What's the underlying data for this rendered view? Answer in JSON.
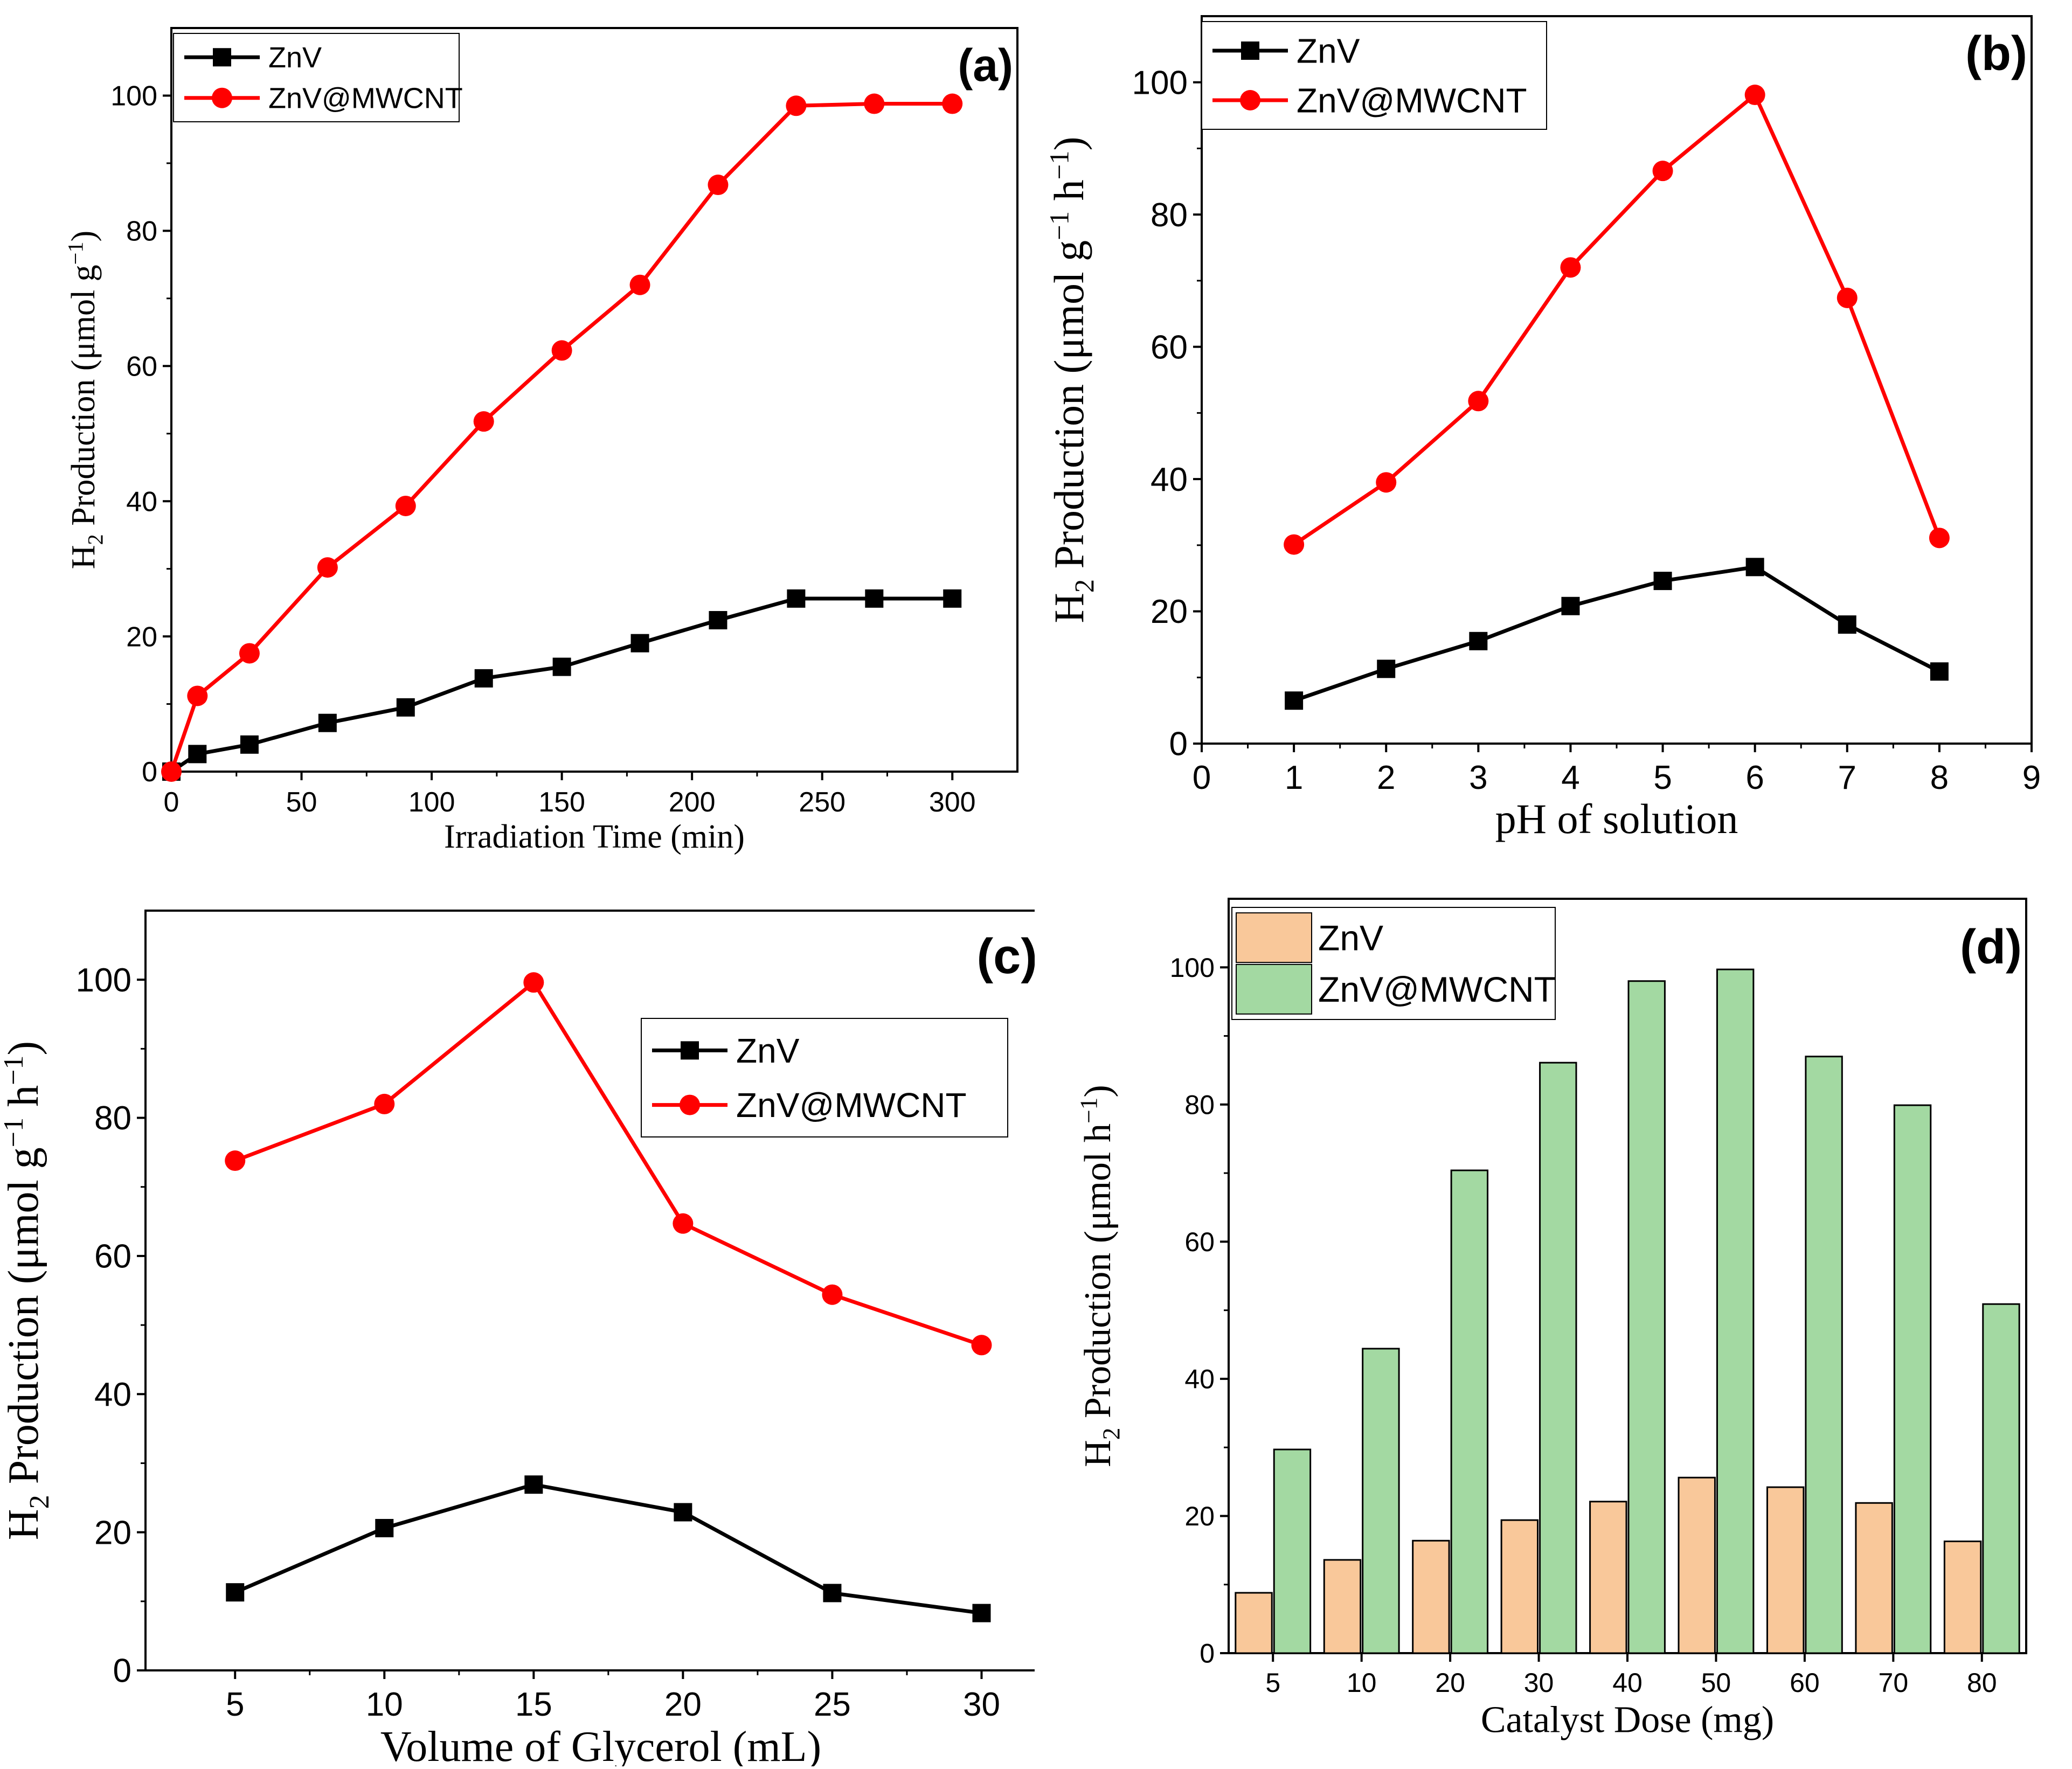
{
  "figure": {
    "colors": {
      "zinc": "#000000",
      "mwcnt": "#ff0000",
      "bar_zinc": "#f9c89a",
      "bar_mwcnt": "#a3d9a2",
      "axis": "#000000"
    }
  },
  "chart_data": [
    {
      "id": "a",
      "type": "line",
      "panel_label": "(a)",
      "xlabel": "Irradiation Time (min)",
      "ylabel": {
        "prefix": "H",
        "sub": "2",
        "main": " Production (μmol g",
        "sup": "−1",
        "suffix": ")"
      },
      "xlim": [
        0,
        325
      ],
      "ylim": [
        0,
        110
      ],
      "xticks": [
        0,
        50,
        100,
        150,
        200,
        250,
        300
      ],
      "yticks": [
        0,
        20,
        40,
        60,
        80,
        100
      ],
      "legend": "top-left",
      "series": [
        {
          "name": "ZnV",
          "color": "#000000",
          "marker": "square",
          "x": [
            0,
            10,
            30,
            60,
            90,
            120,
            150,
            180,
            210,
            240,
            270,
            300
          ],
          "y": [
            0,
            2.6,
            4.0,
            7.2,
            9.5,
            13.8,
            15.5,
            19.0,
            22.4,
            25.6,
            25.6,
            25.6
          ]
        },
        {
          "name": "ZnV@MWCNT",
          "color": "#ff0000",
          "marker": "circle",
          "x": [
            0,
            10,
            30,
            60,
            90,
            120,
            150,
            180,
            210,
            240,
            270,
            300
          ],
          "y": [
            0,
            11.2,
            17.5,
            30.2,
            39.3,
            51.8,
            62.3,
            72.0,
            86.8,
            98.5,
            98.8,
            98.8
          ]
        }
      ]
    },
    {
      "id": "b",
      "type": "line",
      "panel_label": "(b)",
      "xlabel": "pH of solution",
      "ylabel": {
        "prefix": "H",
        "sub": "2",
        "main": " Production (μmol g",
        "sup": "−1",
        "mid": " h",
        "sup2": "−1",
        "suffix": ")"
      },
      "xlim": [
        0,
        9
      ],
      "ylim": [
        0,
        110
      ],
      "xticks": [
        0,
        1,
        2,
        3,
        4,
        5,
        6,
        7,
        8,
        9
      ],
      "yticks": [
        0,
        20,
        40,
        60,
        80,
        100
      ],
      "legend": "top-left",
      "series": [
        {
          "name": "ZnV",
          "color": "#000000",
          "marker": "square",
          "x": [
            1,
            2,
            3,
            4,
            5,
            6,
            7,
            8
          ],
          "y": [
            6.5,
            11.3,
            15.5,
            20.8,
            24.6,
            26.7,
            18.0,
            10.9
          ]
        },
        {
          "name": "ZnV@MWCNT",
          "color": "#ff0000",
          "marker": "circle",
          "x": [
            1,
            2,
            3,
            4,
            5,
            6,
            7,
            8
          ],
          "y": [
            30.1,
            39.5,
            51.8,
            72.0,
            86.6,
            98.1,
            67.4,
            31.1
          ]
        }
      ]
    },
    {
      "id": "c",
      "type": "line",
      "panel_label": "(c)",
      "xlabel": "Volume of Glycerol (mL)",
      "ylabel": {
        "prefix": "H",
        "sub": "2",
        "main": " Production (μmol g",
        "sup": "−1",
        "mid": " h",
        "sup2": "−1",
        "suffix": ")"
      },
      "xlim": [
        2,
        32.5
      ],
      "ylim": [
        0,
        110
      ],
      "xticks": [
        5,
        10,
        15,
        20,
        25,
        30
      ],
      "yticks": [
        0,
        20,
        40,
        60,
        80,
        100
      ],
      "legend": "center-right",
      "series": [
        {
          "name": "ZnV",
          "color": "#000000",
          "marker": "square",
          "x": [
            5,
            10,
            15,
            20,
            25,
            30
          ],
          "y": [
            11.3,
            20.6,
            26.9,
            22.9,
            11.2,
            8.3
          ]
        },
        {
          "name": "ZnV@MWCNT",
          "color": "#ff0000",
          "marker": "circle",
          "x": [
            5,
            10,
            15,
            20,
            25,
            30
          ],
          "y": [
            73.8,
            82.0,
            99.6,
            64.7,
            54.4,
            47.1
          ]
        }
      ]
    },
    {
      "id": "d",
      "type": "bar",
      "panel_label": "(d)",
      "xlabel": "Catalyst Dose (mg)",
      "ylabel": {
        "prefix": "H",
        "sub": "2",
        "main": " Production (μmol h",
        "sup": "−1",
        "suffix": ")"
      },
      "ylim": [
        0,
        110
      ],
      "categories": [
        "5",
        "10",
        "20",
        "30",
        "40",
        "50",
        "60",
        "70",
        "80"
      ],
      "yticks": [
        0,
        20,
        40,
        60,
        80,
        100
      ],
      "legend": "top-left",
      "series": [
        {
          "name": "ZnV",
          "color": "#f9c89a",
          "values": [
            8.8,
            13.6,
            16.4,
            19.4,
            22.1,
            25.6,
            24.2,
            21.9,
            16.3
          ]
        },
        {
          "name": "ZnV@MWCNT",
          "color": "#a3d9a2",
          "values": [
            29.7,
            44.4,
            70.4,
            86.1,
            98.0,
            99.7,
            87.0,
            79.9,
            50.9
          ]
        }
      ]
    }
  ]
}
